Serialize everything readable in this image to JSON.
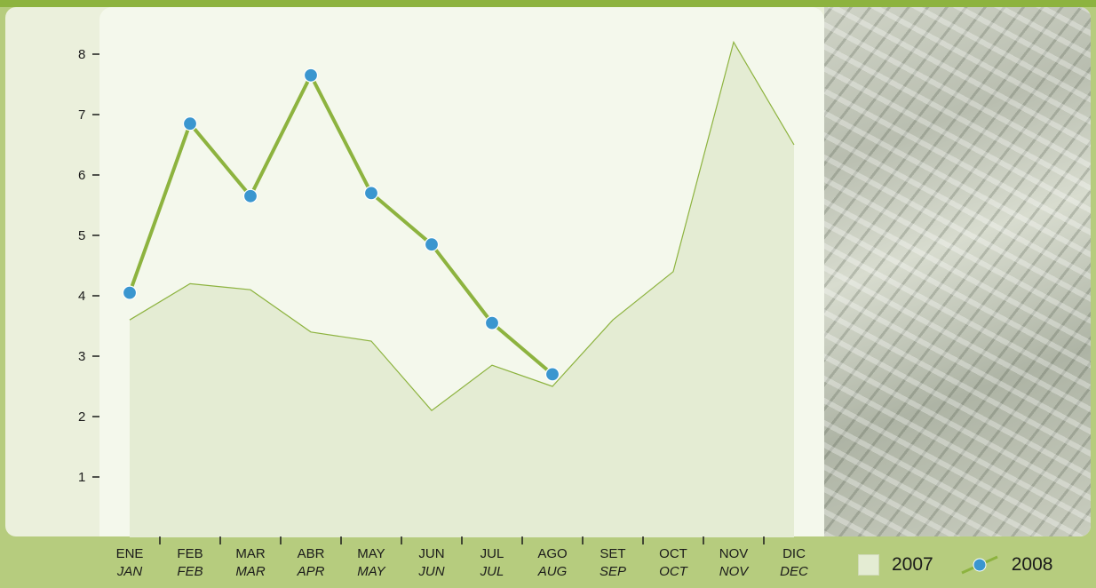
{
  "colors": {
    "frame": "#b6cc7e",
    "top_bar": "#8db33f",
    "panel": "#ebf0dc",
    "plot_background": "#f4f8ec",
    "area_fill": "#e4ecd3",
    "area_stroke": "#8db33f",
    "line_2008": "#8db33f",
    "marker_2008": "#3a96cf"
  },
  "decorative_image": "dollar-bills-photo",
  "legend": {
    "series_2007": "2007",
    "series_2008": "2008"
  },
  "chart_data": {
    "type": "line",
    "title": "",
    "xlabel": "",
    "ylabel": "",
    "ylim": [
      0,
      8.8
    ],
    "yticks": [
      1,
      2,
      3,
      4,
      5,
      6,
      7,
      8
    ],
    "grid": false,
    "legend_position": "bottom-right",
    "categories_es": [
      "ENE",
      "FEB",
      "MAR",
      "ABR",
      "MAY",
      "JUN",
      "JUL",
      "AGO",
      "SET",
      "OCT",
      "NOV",
      "DIC"
    ],
    "categories_en": [
      "JAN",
      "FEB",
      "MAR",
      "APR",
      "MAY",
      "JUN",
      "JUL",
      "AUG",
      "SEP",
      "OCT",
      "NOV",
      "DEC"
    ],
    "series": [
      {
        "name": "2007",
        "type": "area",
        "values": [
          3.6,
          4.2,
          4.1,
          3.4,
          3.25,
          2.1,
          2.85,
          2.5,
          3.6,
          4.4,
          8.2,
          6.5
        ]
      },
      {
        "name": "2008",
        "type": "line",
        "values": [
          4.05,
          6.85,
          5.65,
          7.65,
          5.7,
          4.85,
          3.55,
          2.7
        ]
      }
    ]
  }
}
